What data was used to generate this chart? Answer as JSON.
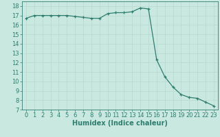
{
  "title": "",
  "xlabel": "Humidex (Indice chaleur)",
  "x_values": [
    0,
    1,
    2,
    3,
    4,
    5,
    6,
    7,
    8,
    9,
    10,
    11,
    12,
    13,
    14,
    15,
    16,
    17,
    18,
    19,
    20,
    21,
    22,
    23
  ],
  "y_values": [
    16.7,
    17.0,
    17.0,
    17.0,
    17.0,
    17.0,
    16.9,
    16.8,
    16.7,
    16.7,
    17.2,
    17.3,
    17.3,
    17.4,
    17.8,
    17.7,
    12.3,
    10.5,
    9.4,
    8.6,
    8.3,
    8.2,
    7.8,
    7.4
  ],
  "line_color": "#2e7d6e",
  "marker_color": "#2e7d6e",
  "bg_color": "#c8e8e0",
  "grid_color": "#b8d8d0",
  "axes_color": "#2e7d6e",
  "tick_color": "#2e7d6e",
  "ylim": [
    7,
    18.5
  ],
  "xlim": [
    -0.5,
    23.5
  ],
  "yticks": [
    7,
    8,
    9,
    10,
    11,
    12,
    13,
    14,
    15,
    16,
    17,
    18
  ],
  "xticks": [
    0,
    1,
    2,
    3,
    4,
    5,
    6,
    7,
    8,
    9,
    10,
    11,
    12,
    13,
    14,
    15,
    16,
    17,
    18,
    19,
    20,
    21,
    22,
    23
  ],
  "font_size": 6.0,
  "xlabel_font_size": 7.0
}
